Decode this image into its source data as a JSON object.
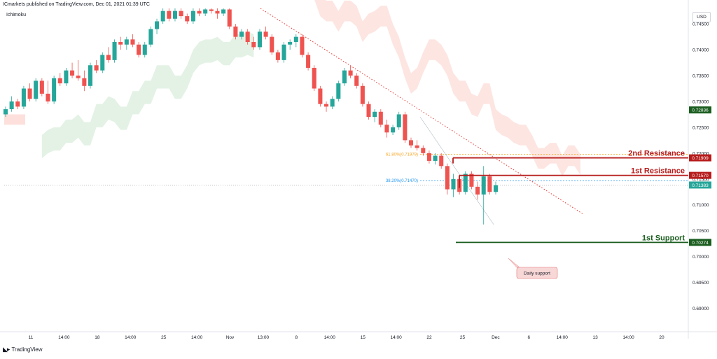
{
  "header": {
    "publisher_line": "ICmarkets published on TradingView.com, Dec 01, 2021 01:39 UTC",
    "indicator": "Ichimoku",
    "currency": "USD",
    "footer_brand": "TradingView"
  },
  "colors": {
    "bull": "#26a69a",
    "bear": "#ef5350",
    "cloud_bull": "#e3f2e5",
    "cloud_bear": "#fde0dc",
    "resistance": "#b71c1c",
    "support": "#1b5e20",
    "fib_618": "#f5a623",
    "fib_382": "#2196f3",
    "trendline": "#e53935",
    "last_price": "#26a69a"
  },
  "chart_data": {
    "type": "candlestick",
    "title": "",
    "xlabel": "",
    "ylabel": "",
    "ylim": [
      0.686,
      0.748
    ],
    "grid": true,
    "y_ticks": [
      "0.74500",
      "0.74000",
      "0.73500",
      "0.73000",
      "0.72500",
      "0.72000",
      "0.71500",
      "0.71000",
      "0.70500",
      "0.70000",
      "0.69500",
      "0.69000"
    ],
    "x_ticks": [
      "11",
      "14:00",
      "18",
      "14:00",
      "25",
      "14:00",
      "Nov",
      "13:00",
      "8",
      "14:00",
      "15",
      "14:00",
      "22",
      "25",
      "Dec",
      "6",
      "14:00",
      "13",
      "14:00",
      "20"
    ],
    "levels": [
      {
        "name": "2nd Resistance",
        "value": 0.71909,
        "label": "0.71909"
      },
      {
        "name": "1st Resistance",
        "value": 0.7157,
        "label": "0.71570"
      },
      {
        "name": "1st Support",
        "value": 0.70274,
        "label": "0.70274"
      }
    ],
    "fibonacci": [
      {
        "label": "61.80%(0.71979)",
        "value": 0.71979
      },
      {
        "label": "38.20%(0.71470)",
        "value": 0.7147
      }
    ],
    "last_price": {
      "value": 0.71383,
      "label": "0.71383"
    },
    "highlight_price": {
      "value": 0.72836,
      "label": "0.72836"
    },
    "annotation": "Daily support",
    "candles": [
      [
        0.7275,
        0.729,
        0.727,
        0.7285
      ],
      [
        0.7285,
        0.731,
        0.728,
        0.73
      ],
      [
        0.73,
        0.7305,
        0.7285,
        0.729
      ],
      [
        0.729,
        0.733,
        0.7285,
        0.7325
      ],
      [
        0.7325,
        0.7335,
        0.73,
        0.7305
      ],
      [
        0.7305,
        0.7345,
        0.73,
        0.734
      ],
      [
        0.734,
        0.7345,
        0.731,
        0.7315
      ],
      [
        0.7315,
        0.734,
        0.7295,
        0.73
      ],
      [
        0.73,
        0.735,
        0.7295,
        0.7345
      ],
      [
        0.7345,
        0.7355,
        0.733,
        0.7335
      ],
      [
        0.7335,
        0.7365,
        0.733,
        0.736
      ],
      [
        0.736,
        0.7375,
        0.7345,
        0.735
      ],
      [
        0.735,
        0.738,
        0.734,
        0.7345
      ],
      [
        0.7345,
        0.736,
        0.732,
        0.733
      ],
      [
        0.733,
        0.7375,
        0.7325,
        0.737
      ],
      [
        0.737,
        0.738,
        0.7355,
        0.736
      ],
      [
        0.736,
        0.7395,
        0.7355,
        0.739
      ],
      [
        0.739,
        0.7405,
        0.7375,
        0.738
      ],
      [
        0.738,
        0.742,
        0.7375,
        0.7415
      ],
      [
        0.7415,
        0.7425,
        0.74,
        0.741
      ],
      [
        0.741,
        0.7425,
        0.74,
        0.742
      ],
      [
        0.742,
        0.743,
        0.7405,
        0.741
      ],
      [
        0.741,
        0.7415,
        0.7385,
        0.739
      ],
      [
        0.739,
        0.7415,
        0.7385,
        0.741
      ],
      [
        0.741,
        0.7445,
        0.7405,
        0.744
      ],
      [
        0.744,
        0.746,
        0.743,
        0.7455
      ],
      [
        0.7455,
        0.748,
        0.745,
        0.7475
      ],
      [
        0.7475,
        0.748,
        0.7455,
        0.746
      ],
      [
        0.746,
        0.748,
        0.7455,
        0.7475
      ],
      [
        0.7475,
        0.748,
        0.746,
        0.7465
      ],
      [
        0.7465,
        0.747,
        0.745,
        0.7455
      ],
      [
        0.7455,
        0.748,
        0.745,
        0.7475
      ],
      [
        0.7475,
        0.748,
        0.7465,
        0.747
      ],
      [
        0.747,
        0.748,
        0.7465,
        0.7478
      ],
      [
        0.7478,
        0.748,
        0.747,
        0.7475
      ],
      [
        0.7475,
        0.748,
        0.746,
        0.747
      ],
      [
        0.747,
        0.748,
        0.7465,
        0.7478
      ],
      [
        0.7478,
        0.748,
        0.744,
        0.7445
      ],
      [
        0.7445,
        0.745,
        0.742,
        0.7425
      ],
      [
        0.7425,
        0.744,
        0.742,
        0.7435
      ],
      [
        0.7435,
        0.744,
        0.741,
        0.7415
      ],
      [
        0.7415,
        0.7425,
        0.74,
        0.7405
      ],
      [
        0.7405,
        0.744,
        0.74,
        0.7435
      ],
      [
        0.7435,
        0.7445,
        0.742,
        0.7425
      ],
      [
        0.7425,
        0.743,
        0.739,
        0.7395
      ],
      [
        0.7395,
        0.74,
        0.7375,
        0.738
      ],
      [
        0.738,
        0.7415,
        0.7375,
        0.741
      ],
      [
        0.741,
        0.742,
        0.74,
        0.7415
      ],
      [
        0.7415,
        0.743,
        0.7405,
        0.7425
      ],
      [
        0.7425,
        0.743,
        0.7385,
        0.739
      ],
      [
        0.739,
        0.7395,
        0.736,
        0.7365
      ],
      [
        0.7365,
        0.737,
        0.732,
        0.7325
      ],
      [
        0.7325,
        0.733,
        0.729,
        0.7295
      ],
      [
        0.7295,
        0.73,
        0.728,
        0.729
      ],
      [
        0.729,
        0.731,
        0.7285,
        0.7305
      ],
      [
        0.7305,
        0.734,
        0.73,
        0.7335
      ],
      [
        0.7335,
        0.7365,
        0.733,
        0.736
      ],
      [
        0.736,
        0.737,
        0.7345,
        0.735
      ],
      [
        0.735,
        0.7355,
        0.7325,
        0.733
      ],
      [
        0.733,
        0.7335,
        0.729,
        0.7295
      ],
      [
        0.7295,
        0.73,
        0.7265,
        0.727
      ],
      [
        0.727,
        0.7285,
        0.726,
        0.728
      ],
      [
        0.728,
        0.7285,
        0.725,
        0.7255
      ],
      [
        0.7255,
        0.7265,
        0.723,
        0.724
      ],
      [
        0.724,
        0.7255,
        0.7235,
        0.725
      ],
      [
        0.725,
        0.728,
        0.7245,
        0.7275
      ],
      [
        0.7275,
        0.728,
        0.722,
        0.7225
      ],
      [
        0.7225,
        0.723,
        0.721,
        0.7215
      ],
      [
        0.7215,
        0.7225,
        0.7205,
        0.721
      ],
      [
        0.721,
        0.7215,
        0.7195,
        0.72
      ],
      [
        0.72,
        0.7205,
        0.718,
        0.7185
      ],
      [
        0.7185,
        0.72,
        0.7178,
        0.7195
      ],
      [
        0.7195,
        0.72,
        0.717,
        0.7175
      ],
      [
        0.7175,
        0.718,
        0.712,
        0.713
      ],
      [
        0.713,
        0.716,
        0.7115,
        0.715
      ],
      [
        0.715,
        0.7155,
        0.712,
        0.7125
      ],
      [
        0.7125,
        0.7165,
        0.712,
        0.716
      ],
      [
        0.716,
        0.7165,
        0.713,
        0.7135
      ],
      [
        0.7135,
        0.7145,
        0.711,
        0.712
      ],
      [
        0.712,
        0.7175,
        0.7062,
        0.7155
      ],
      [
        0.7155,
        0.716,
        0.712,
        0.7125
      ],
      [
        0.7125,
        0.7145,
        0.712,
        0.7138
      ]
    ]
  }
}
